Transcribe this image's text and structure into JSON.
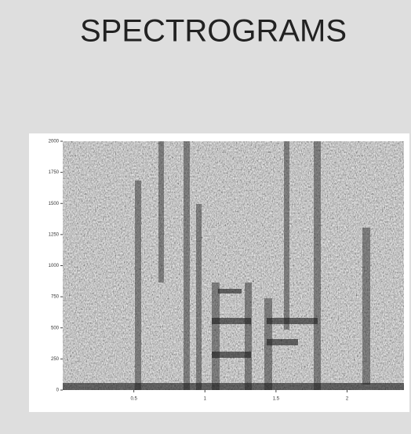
{
  "chart_data": {
    "type": "spectrogram",
    "title": "SPECTROGRAMS",
    "xlim": [
      0,
      2.4
    ],
    "xticks": [
      0.5,
      1.0,
      1.5,
      2.0
    ],
    "ylim": [
      0,
      2000
    ],
    "yticks": [
      0,
      250,
      500,
      750,
      1000,
      1250,
      1500,
      1750,
      2000
    ]
  }
}
